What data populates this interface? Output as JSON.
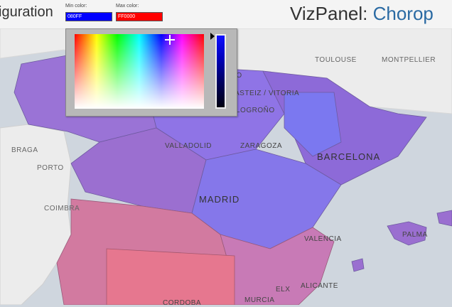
{
  "header": {
    "config_title": "iguration",
    "viz_title_prefix": "VizPanel: ",
    "viz_title_suffix": "Chorop"
  },
  "min_color": {
    "label": "Min color:",
    "value": "080FF",
    "swatch": "#0000ff"
  },
  "max_color": {
    "label": "Max color:",
    "value": "FF0000",
    "swatch": "#ff0000"
  },
  "map": {
    "cities": [
      {
        "name": "TOULOUSE",
        "cls": "city light"
      },
      {
        "name": "MONTPELLIER",
        "cls": "city light"
      },
      {
        "name": "BRAGA",
        "cls": "city light"
      },
      {
        "name": "PORTO",
        "cls": "city light"
      },
      {
        "name": "COIMBRA",
        "cls": "city light"
      },
      {
        "name": "ASTEIZ / VITORIA",
        "cls": "city"
      },
      {
        "name": "LOGROÑO",
        "cls": "city"
      },
      {
        "name": "VALLADOLID",
        "cls": "city"
      },
      {
        "name": "ZARAGOZA",
        "cls": "city"
      },
      {
        "name": "BARCELONA",
        "cls": "city big"
      },
      {
        "name": "MADRID",
        "cls": "city big"
      },
      {
        "name": "VALENCIA",
        "cls": "city"
      },
      {
        "name": "PALMA",
        "cls": "city"
      },
      {
        "name": "ALICANTE",
        "cls": "city"
      },
      {
        "name": "ELX",
        "cls": "city"
      },
      {
        "name": "MURCIA",
        "cls": "city"
      },
      {
        "name": "CORDOBA",
        "cls": "city"
      },
      {
        "name": "BAO",
        "cls": "city"
      }
    ]
  },
  "colors": {
    "accent": "#2a6aa3",
    "background": "#cfd6de",
    "land": "#ececec"
  }
}
